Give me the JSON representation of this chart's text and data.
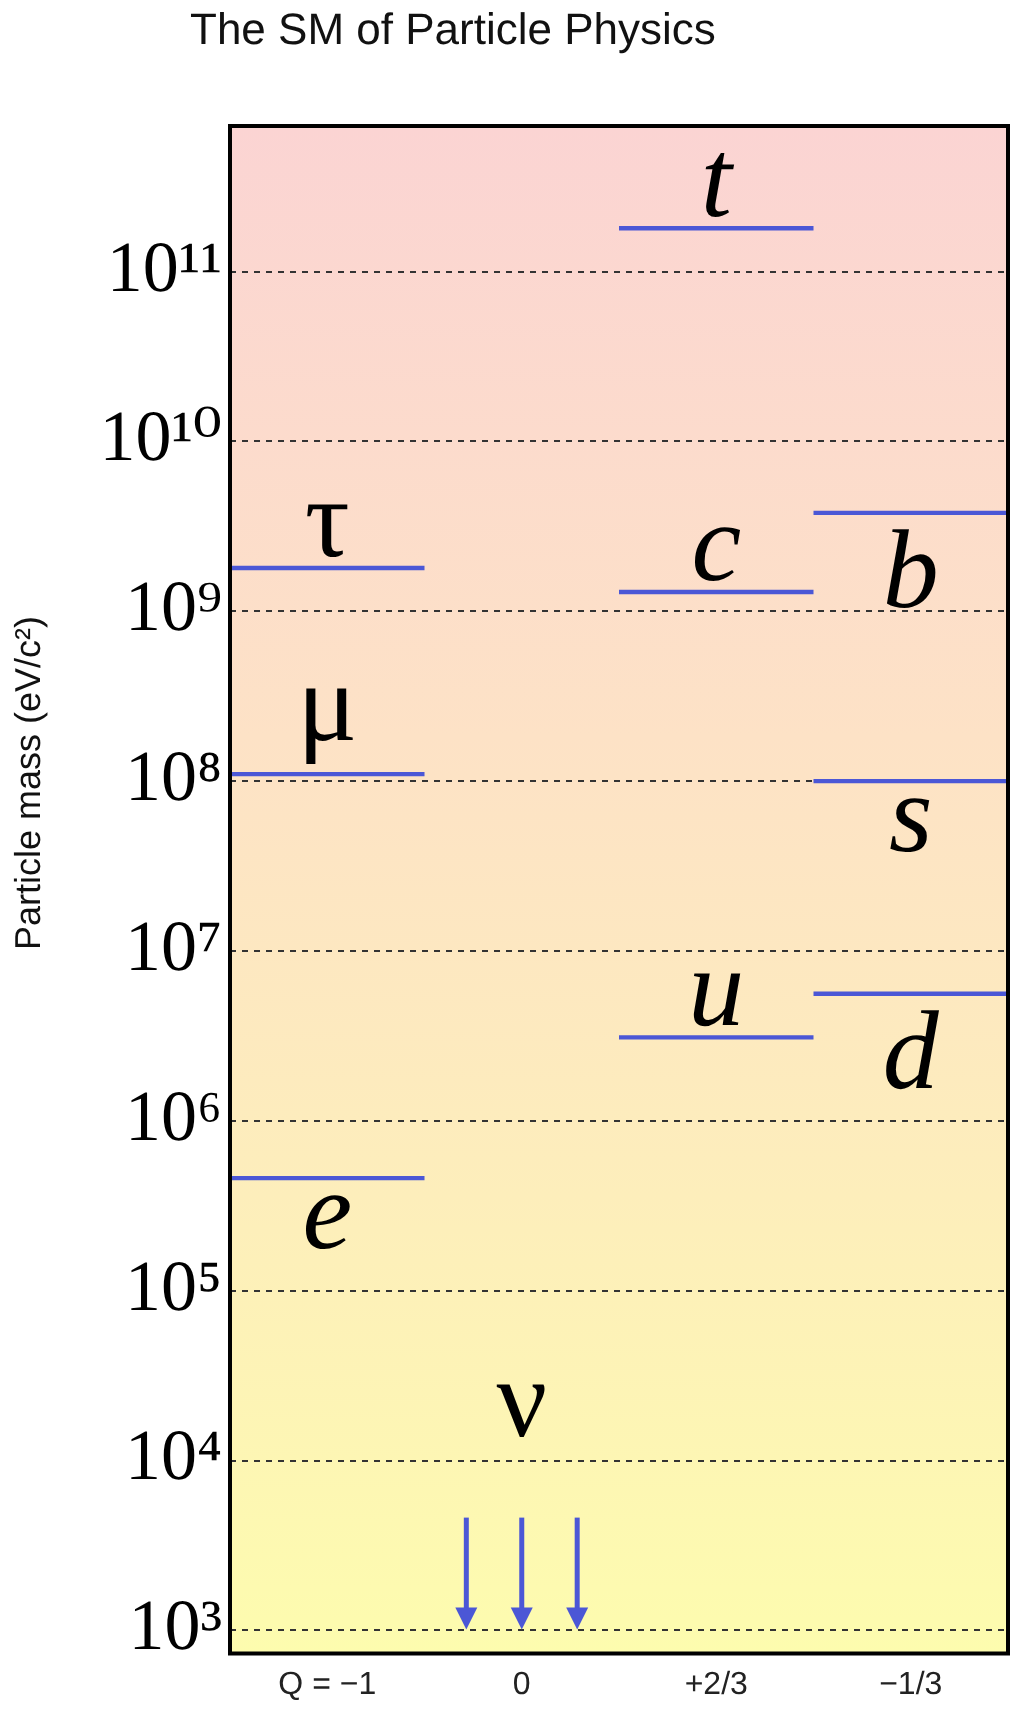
{
  "chart_data": {
    "type": "line",
    "title": "The SM of Particle Physics",
    "ylabel": "Particle mass (eV/c²)",
    "categories": [
      null,
      "Q = −1",
      null,
      "0",
      null,
      "+2/3",
      null,
      "−1/3",
      null
    ],
    "series": [
      {
        "color": "#4b57d6",
        "values": [
          460000,
          460000,
          460000,
          null,
          null,
          null,
          null,
          null,
          null
        ]
      },
      {
        "color": "#4b57d6",
        "values": [
          110000000,
          110000000,
          110000000,
          null,
          null,
          null,
          null,
          null,
          null
        ]
      },
      {
        "color": "#4b57d6",
        "values": [
          1800000000,
          1800000000,
          1800000000,
          null,
          null,
          null,
          null,
          null,
          null
        ]
      },
      {
        "color": "#4b57d6",
        "values": [
          null,
          null,
          null,
          null,
          3100000,
          3100000,
          3100000,
          null,
          null
        ]
      },
      {
        "color": "#4b57d6",
        "values": [
          null,
          null,
          null,
          null,
          1300000000,
          1300000000,
          1300000000,
          null,
          null
        ]
      },
      {
        "color": "#4b57d6",
        "values": [
          null,
          null,
          null,
          null,
          180000000000,
          180000000000,
          180000000000,
          null,
          null
        ]
      },
      {
        "color": "#4b57d6",
        "values": [
          null,
          null,
          null,
          null,
          null,
          null,
          5600000,
          5600000,
          5600000
        ]
      },
      {
        "color": "#4b57d6",
        "values": [
          null,
          null,
          null,
          null,
          null,
          null,
          100000000,
          100000000,
          100000000
        ]
      },
      {
        "color": "#4b57d6",
        "values": [
          null,
          null,
          null,
          null,
          null,
          null,
          3800000000,
          3800000000,
          3800000000
        ]
      }
    ],
    "marker": "none",
    "log": true,
    "ylim": [
      730,
      720000000000
    ],
    "yticks": [
      {
        "value": 1000,
        "label": "10³"
      },
      {
        "value": 10000,
        "label": "10⁴"
      },
      {
        "value": 100000,
        "label": "10⁵"
      },
      {
        "value": 1000000,
        "label": "10⁶"
      },
      {
        "value": 10000000,
        "label": "10⁷"
      },
      {
        "value": 100000000,
        "label": "10⁸"
      },
      {
        "value": 1000000000,
        "label": "10⁹"
      },
      {
        "value": 10000000000,
        "label": "10¹⁰"
      },
      {
        "value": 100000000000,
        "label": "10¹¹"
      }
    ],
    "grid": "y",
    "annotations": [
      {
        "text": "t",
        "x": "+2/3",
        "y": 180000000000
      },
      {
        "text": "c",
        "x": "+2/3",
        "y": 1300000000
      },
      {
        "text": "u",
        "x": "+2/3",
        "y": 3100000
      },
      {
        "text": "b",
        "x": "−1/3",
        "y": 3800000000
      },
      {
        "text": "s",
        "x": "−1/3",
        "y": 100000000
      },
      {
        "text": "d",
        "x": "−1/3",
        "y": 5600000
      },
      {
        "text": "τ",
        "x": "Q = −1",
        "y": 1800000000
      },
      {
        "text": "μ",
        "x": "Q = −1",
        "y": 110000000
      },
      {
        "text": "e",
        "x": "Q = −1",
        "y": 460000
      },
      "ν"
    ]
  }
}
